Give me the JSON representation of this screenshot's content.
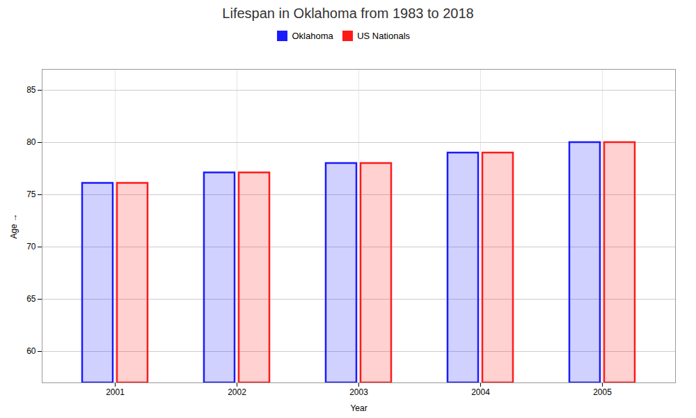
{
  "chart_data": {
    "type": "bar",
    "title": "Lifespan in Oklahoma from 1983 to 2018",
    "xlabel": "Year",
    "ylabel": "Age",
    "categories": [
      "2001",
      "2002",
      "2003",
      "2004",
      "2005"
    ],
    "series": [
      {
        "name": "Oklahoma",
        "color": "#1a1aff",
        "values": [
          76.1,
          77.1,
          78.0,
          79.0,
          80.0
        ]
      },
      {
        "name": "US Nationals",
        "color": "#ff1a1a",
        "values": [
          76.1,
          77.1,
          78.0,
          79.0,
          80.0
        ]
      }
    ],
    "ylim": [
      57,
      87
    ],
    "yticks": [
      60,
      65,
      70,
      75,
      80,
      85
    ],
    "grid": true,
    "legend": "top"
  }
}
